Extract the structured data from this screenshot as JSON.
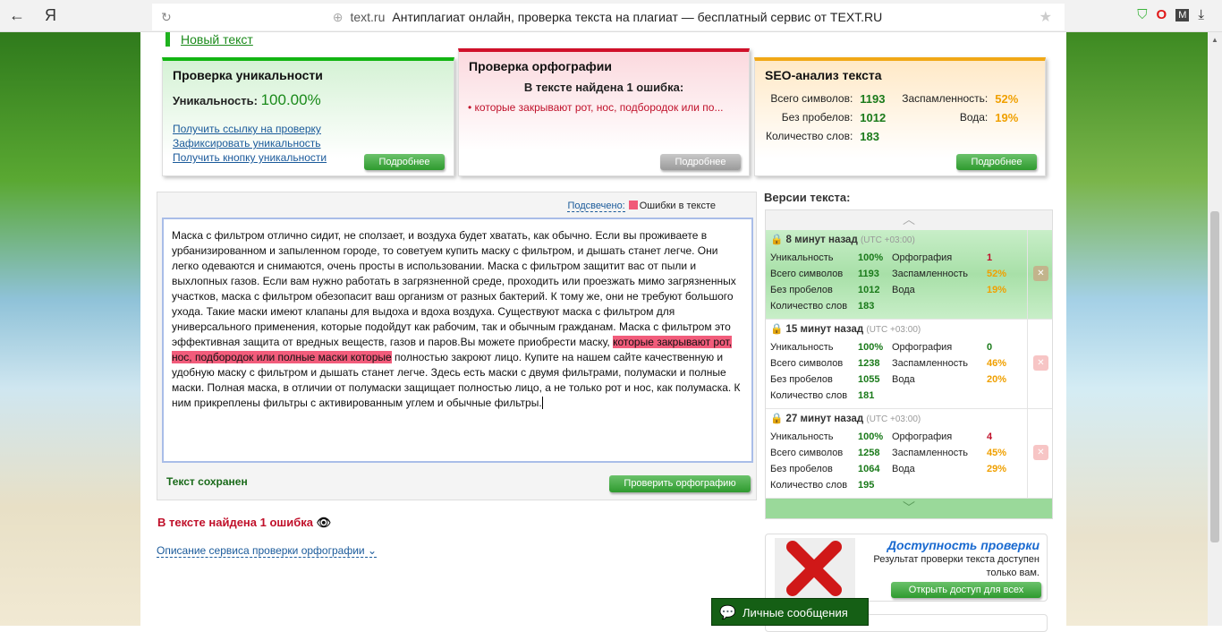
{
  "browser": {
    "back": "←",
    "logo": "Я",
    "reload": "↻",
    "domain": "text.ru",
    "title": "Антиплагиат онлайн, проверка текста на плагиат — бесплатный сервис от TEXT.RU",
    "extensions": [
      "shield-check-icon",
      "opera-icon",
      "m-icon",
      "download-icon"
    ]
  },
  "page": {
    "new_text": "Новый текст",
    "uniqueness": {
      "title": "Проверка уникальности",
      "label": "Уникальность:",
      "value": "100.00%",
      "links": [
        "Получить ссылку на проверку",
        "Зафиксировать уникальность",
        "Получить кнопку уникальности"
      ],
      "more": "Подробнее"
    },
    "spelling": {
      "title": "Проверка орфографии",
      "found": "В тексте найдена 1 ошибка:",
      "error": "• которые закрывают рот, нос, подбородок или по...",
      "more": "Подробнее"
    },
    "seo": {
      "title": "SEO-анализ текста",
      "total_label": "Всего символов:",
      "total": "1193",
      "nospace_label": "Без пробелов:",
      "nospace": "1012",
      "words_label": "Количество слов:",
      "words": "183",
      "spam_label": "Заспамленность:",
      "spam": "52%",
      "water_label": "Вода:",
      "water": "19%",
      "more": "Подробнее"
    },
    "editor": {
      "highlight_label": "Подсвечено:",
      "legend": "Ошибки в тексте",
      "text_before": "Маска с фильтром отлично сидит, не сползает, и воздуха будет хватать, как обычно. Если вы проживаете в урбанизированном и запыленном городе, то советуем купить маску с фильтром, и дышать станет легче. Они легко одеваются и снимаются, очень просты в использовании. Маска с фильтром защитит вас от пыли и выхлопных газов. Если вам нужно работать в загрязненной среде, проходить или проезжать мимо загрязненных участков, маска с фильтром обезопасит ваш организм от разных бактерий. К тому же, они не требуют большого ухода. Такие маски имеют клапаны для выдоха и вдоха воздуха. Существуют маска с фильтром для универсального применения, которые подойдут как рабочим, так и обычным гражданам. Маска с фильтром это эффективная защита от вредных веществ, газов и паров.Вы можете приобрести маску, ",
      "text_error": "которые закрывают рот, нос, подбородок или полные маски которые",
      "text_after": " полностью закроют лицо. Купите на нашем сайте качественную и удобную маску с фильтром и дышать станет легче. Здесь есть маски с двумя фильтрами, полумаски и полные маски. Полная маска, в отличии от полумаски защищает полностью лицо, а не только рот и нос, как полумаска. К ним прикреплены фильтры с активированным углем и обычные фильтры.",
      "saved": "Текст сохранен",
      "check_button": "Проверить орфографию"
    },
    "error_summary": "В тексте найдена 1 ошибка",
    "description_link": "Описание сервиса проверки орфографии",
    "versions": {
      "title": "Версии текста:",
      "labels": {
        "uniq": "Уникальность",
        "total": "Всего символов",
        "nospace": "Без пробелов",
        "words": "Количество слов",
        "spelling": "Орфография",
        "spam": "Заспамленность",
        "water": "Вода"
      },
      "utc": "(UTC +03:00)",
      "items": [
        {
          "time": "8 минут назад",
          "uniq": "100%",
          "total": "1193",
          "nospace": "1012",
          "words": "183",
          "spelling": "1",
          "spam": "52%",
          "water": "19%"
        },
        {
          "time": "15 минут назад",
          "uniq": "100%",
          "total": "1238",
          "nospace": "1055",
          "words": "181",
          "spelling": "0",
          "spam": "46%",
          "water": "20%"
        },
        {
          "time": "27 минут назад",
          "uniq": "100%",
          "total": "1258",
          "nospace": "1064",
          "words": "195",
          "spelling": "4",
          "spam": "45%",
          "water": "29%"
        }
      ]
    },
    "access": {
      "title": "Доступность проверки",
      "text": "Результат проверки текста доступен только вам.",
      "button": "Открыть доступ для всех"
    },
    "messages": "Личные сообщения"
  },
  "colors": {
    "green": "#12b512",
    "red": "#d0102a",
    "orange": "#f1a816",
    "error_highlight": "#f25c7b"
  }
}
